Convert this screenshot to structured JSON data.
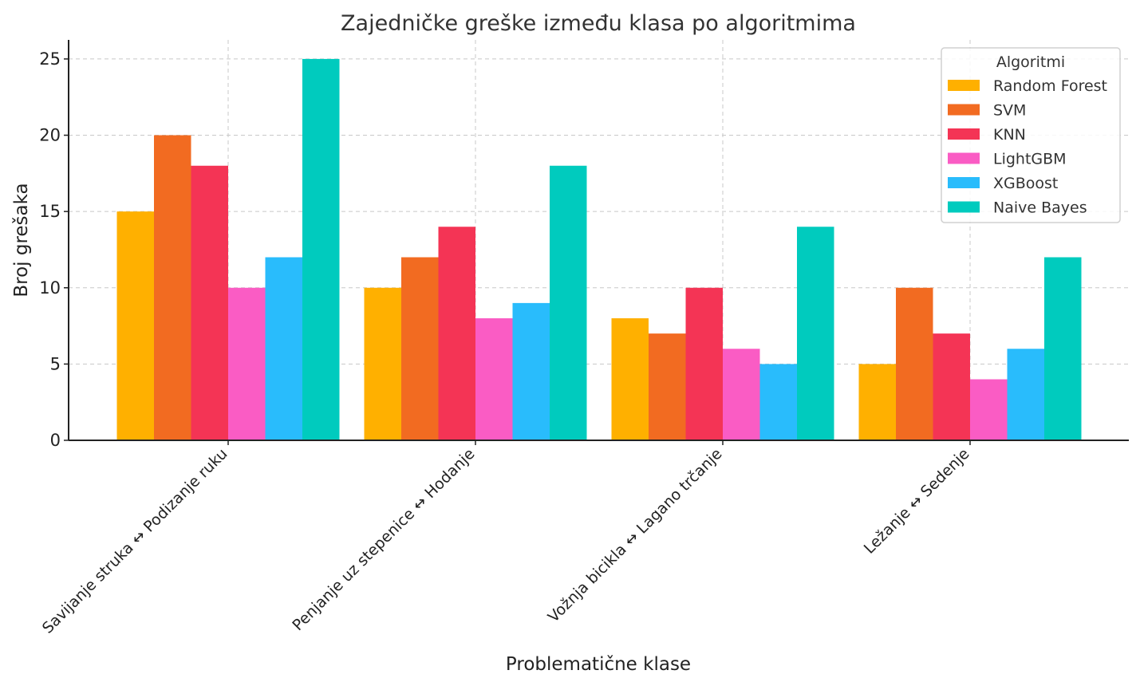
{
  "chart_data": {
    "type": "bar",
    "title": "Zajedničke greške između klasa po algoritmima",
    "xlabel": "Problematične klase",
    "ylabel": "Broj grešaka",
    "ylim": [
      0,
      26.25
    ],
    "yticks": [
      0,
      5,
      10,
      15,
      20,
      25
    ],
    "grid": true,
    "legend_title": "Algoritmi",
    "legend_position": "top-right",
    "categories": [
      "Savijanje struka ↔ Podizanje ruku",
      "Penjanje uz stepenice ↔ Hodanje",
      "Vožnja bicikla ↔ Lagano trčanje",
      "Ležanje ↔ Sedenje"
    ],
    "series": [
      {
        "name": "Random Forest",
        "color": "#FFB000",
        "values": [
          15,
          10,
          8,
          5
        ]
      },
      {
        "name": "SVM",
        "color": "#F26B21",
        "values": [
          20,
          12,
          7,
          10
        ]
      },
      {
        "name": "KNN",
        "color": "#F43455",
        "values": [
          18,
          14,
          10,
          7
        ]
      },
      {
        "name": "LightGBM",
        "color": "#FA5CC4",
        "values": [
          10,
          8,
          6,
          4
        ]
      },
      {
        "name": "XGBoost",
        "color": "#29BCFC",
        "values": [
          12,
          9,
          5,
          6
        ]
      },
      {
        "name": "Naive Bayes",
        "color": "#00CBBE",
        "values": [
          25,
          18,
          14,
          12
        ]
      }
    ]
  }
}
